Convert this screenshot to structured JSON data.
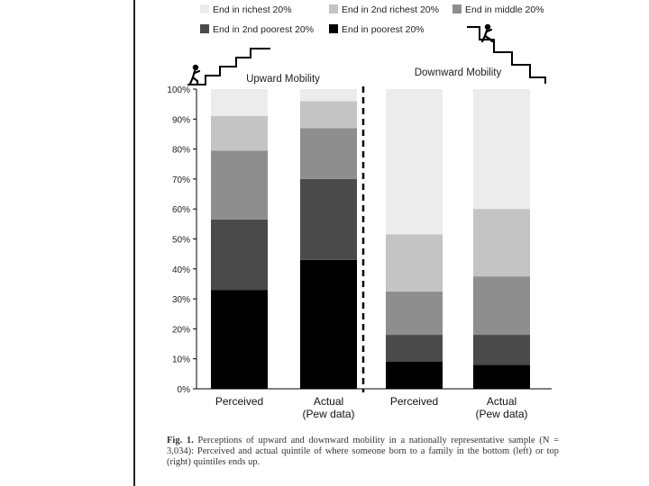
{
  "chart_data": {
    "type": "bar",
    "stacked": true,
    "panels": [
      {
        "title": "Upward Mobility",
        "categories": [
          "Perceived",
          "Actual\n(Pew data)"
        ]
      },
      {
        "title": "Downward Mobility",
        "categories": [
          "Perceived",
          "Actual\n(Pew data)"
        ]
      }
    ],
    "categories": [
      "Perceived",
      "Actual\n(Pew data)",
      "Perceived",
      "Actual\n(Pew data)"
    ],
    "series": [
      {
        "name": "End in poorest 20%",
        "color": "#000000",
        "values": [
          33,
          43,
          9,
          8
        ]
      },
      {
        "name": "End in 2nd poorest 20%",
        "color": "#4a4a4a",
        "values": [
          23.5,
          27,
          9,
          10
        ]
      },
      {
        "name": "End in middle 20%",
        "color": "#8e8e8e",
        "values": [
          23,
          17,
          14.5,
          19.5
        ]
      },
      {
        "name": "End in 2nd richest 20%",
        "color": "#c4c4c4",
        "values": [
          11.5,
          9,
          19,
          22.5
        ]
      },
      {
        "name": "End in richest 20%",
        "color": "#ececec",
        "values": [
          9,
          4,
          48.5,
          40
        ]
      }
    ],
    "yticks": [
      "0%",
      "10%",
      "20%",
      "30%",
      "40%",
      "50%",
      "60%",
      "70%",
      "80%",
      "90%",
      "100%"
    ],
    "ylim": [
      0,
      100
    ],
    "legend_position": "top",
    "grid": false
  },
  "caption": {
    "label": "Fig. 1.",
    "text": "Perceptions of upward and downward mobility in a nationally representative sample (N = 3,034): Perceived and actual quintile of where someone born to a family in the bottom (left) or top (right) quintiles ends up."
  }
}
